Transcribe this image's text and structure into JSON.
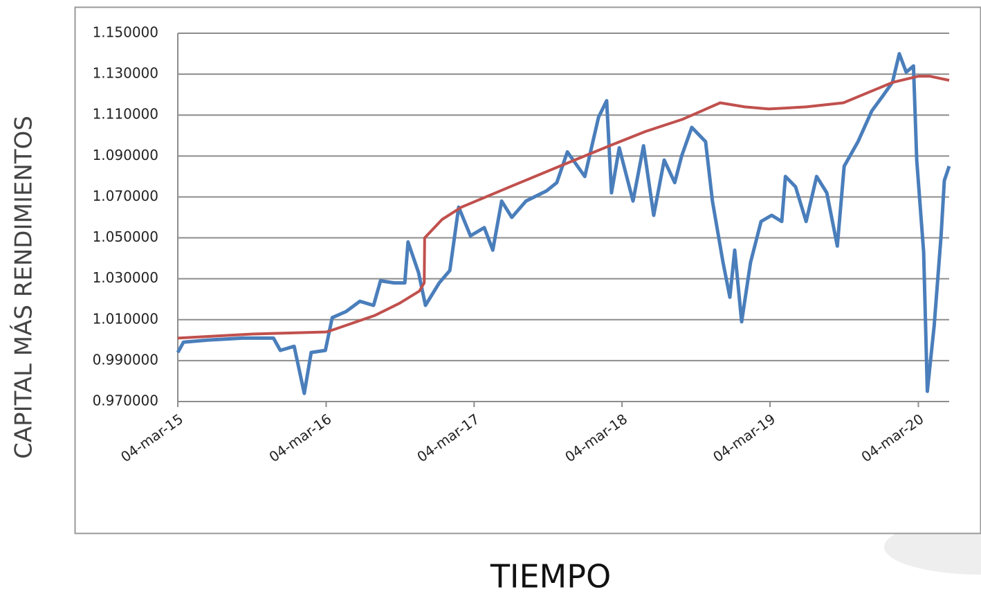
{
  "chart_data": {
    "type": "line",
    "y_label": "CAPITAL MÁS RENDIMIENTOS",
    "x_label": "TIEMPO",
    "xlim": [
      "2015-03-04",
      "2020-05-19"
    ],
    "xticks": [
      {
        "value": "2015-03-04",
        "label": "04-mar-15"
      },
      {
        "value": "2016-03-04",
        "label": "04-mar-16"
      },
      {
        "value": "2017-03-04",
        "label": "04-mar-17"
      },
      {
        "value": "2018-03-04",
        "label": "04-mar-18"
      },
      {
        "value": "2019-03-04",
        "label": "04-mar-19"
      },
      {
        "value": "2020-03-04",
        "label": "04-mar-20"
      }
    ],
    "ylim": [
      0.97,
      1.15
    ],
    "yticks": [
      {
        "value": 0.97,
        "label": "0.970000"
      },
      {
        "value": 0.99,
        "label": "0.990000"
      },
      {
        "value": 1.01,
        "label": "1.010000"
      },
      {
        "value": 1.03,
        "label": "1.030000"
      },
      {
        "value": 1.05,
        "label": "1.050000"
      },
      {
        "value": 1.07,
        "label": "1.070000"
      },
      {
        "value": 1.09,
        "label": "1.090000"
      },
      {
        "value": 1.11,
        "label": "1.110000"
      },
      {
        "value": 1.13,
        "label": "1.130000"
      },
      {
        "value": 1.15,
        "label": "1.150000"
      }
    ],
    "grid": true,
    "series": [
      {
        "color": "#4a7ebb",
        "x": [
          "2015-03-04",
          "2015-03-18",
          "2015-05-16",
          "2015-08-10",
          "2015-10-26",
          "2015-11-12",
          "2015-12-16",
          "2016-01-10",
          "2016-01-27",
          "2016-03-02",
          "2016-03-19",
          "2016-04-22",
          "2016-05-26",
          "2016-06-29",
          "2016-07-16",
          "2016-08-19",
          "2016-09-14",
          "2016-09-22",
          "2016-10-18",
          "2016-11-04",
          "2016-12-08",
          "2017-01-03",
          "2017-01-25",
          "2017-02-23",
          "2017-03-29",
          "2017-04-19",
          "2017-05-11",
          "2017-06-05",
          "2017-07-10",
          "2017-08-30",
          "2017-09-24",
          "2017-10-20",
          "2017-12-02",
          "2018-01-05",
          "2018-01-25",
          "2018-02-06",
          "2018-02-25",
          "2018-03-31",
          "2018-04-26",
          "2018-05-21",
          "2018-06-16",
          "2018-07-12",
          "2018-07-29",
          "2018-08-23",
          "2018-09-26",
          "2018-10-13",
          "2018-11-08",
          "2018-11-25",
          "2018-12-07",
          "2018-12-24",
          "2019-01-15",
          "2019-02-10",
          "2019-03-08",
          "2019-04-02",
          "2019-04-11",
          "2019-05-06",
          "2019-06-01",
          "2019-06-27",
          "2019-07-22",
          "2019-08-17",
          "2019-09-03",
          "2019-10-07",
          "2019-11-10",
          "2019-12-06",
          "2019-12-31",
          "2020-01-17",
          "2020-02-03",
          "2020-02-21",
          "2020-02-29",
          "2020-03-17",
          "2020-03-26",
          "2020-04-12",
          "2020-04-29",
          "2020-05-07",
          "2020-05-19"
        ],
        "values": [
          0.994,
          0.999,
          1.0,
          1.001,
          1.001,
          0.995,
          0.997,
          0.974,
          0.994,
          0.995,
          1.011,
          1.014,
          1.019,
          1.017,
          1.029,
          1.028,
          1.028,
          1.048,
          1.033,
          1.017,
          1.028,
          1.034,
          1.065,
          1.051,
          1.055,
          1.044,
          1.068,
          1.06,
          1.068,
          1.073,
          1.077,
          1.092,
          1.08,
          1.109,
          1.117,
          1.072,
          1.094,
          1.068,
          1.095,
          1.061,
          1.088,
          1.077,
          1.09,
          1.104,
          1.097,
          1.068,
          1.038,
          1.021,
          1.044,
          1.009,
          1.038,
          1.058,
          1.061,
          1.058,
          1.08,
          1.075,
          1.058,
          1.08,
          1.072,
          1.046,
          1.085,
          1.097,
          1.112,
          1.119,
          1.126,
          1.14,
          1.131,
          1.134,
          1.088,
          1.043,
          0.975,
          1.007,
          1.051,
          1.078,
          1.085
        ]
      },
      {
        "color": "#c0504d",
        "x": [
          "2015-03-04",
          "2015-09-04",
          "2016-03-04",
          "2016-03-20",
          "2016-07-01",
          "2016-09-01",
          "2016-10-20",
          "2016-11-01",
          "2016-11-02",
          "2016-12-15",
          "2017-02-01",
          "2017-06-01",
          "2017-10-01",
          "2018-02-01",
          "2018-05-01",
          "2018-08-01",
          "2018-11-01",
          "2019-01-01",
          "2019-03-01",
          "2019-06-01",
          "2019-09-01",
          "2019-11-01",
          "2020-01-01",
          "2020-03-04",
          "2020-04-01",
          "2020-05-19"
        ],
        "values": [
          1.001,
          1.003,
          1.004,
          1.005,
          1.012,
          1.018,
          1.024,
          1.028,
          1.05,
          1.059,
          1.065,
          1.075,
          1.085,
          1.095,
          1.102,
          1.108,
          1.116,
          1.114,
          1.113,
          1.114,
          1.116,
          1.121,
          1.126,
          1.129,
          1.129,
          1.127
        ]
      }
    ]
  }
}
